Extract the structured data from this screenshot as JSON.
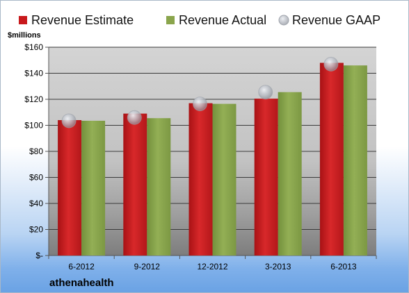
{
  "chart_data": {
    "type": "bar",
    "title": "",
    "company": "athenahealth",
    "unit_label": "$millions",
    "categories": [
      "6-2012",
      "9-2012",
      "12-2012",
      "3-2013",
      "6-2013"
    ],
    "series": [
      {
        "name": "Revenue Estimate",
        "values": [
          104,
          109,
          117,
          120.5,
          148
        ],
        "color": "#c8191c",
        "kind": "bar"
      },
      {
        "name": "Revenue Actual",
        "values": [
          103.5,
          105.5,
          116.5,
          125.5,
          146
        ],
        "color": "#8aa54c",
        "kind": "bar"
      },
      {
        "name": "Revenue GAAP",
        "values": [
          103.5,
          106,
          116.5,
          125.5,
          147
        ],
        "color": "#b8bcc4",
        "kind": "marker"
      }
    ],
    "ylim": [
      0,
      160
    ],
    "ytick_values": [
      0,
      20,
      40,
      60,
      80,
      100,
      120,
      140,
      160
    ],
    "ytick_labels": [
      "$-",
      "$20",
      "$40",
      "$60",
      "$80",
      "$100",
      "$120",
      "$140",
      "$160"
    ],
    "grid": true,
    "legend_position": "top"
  }
}
